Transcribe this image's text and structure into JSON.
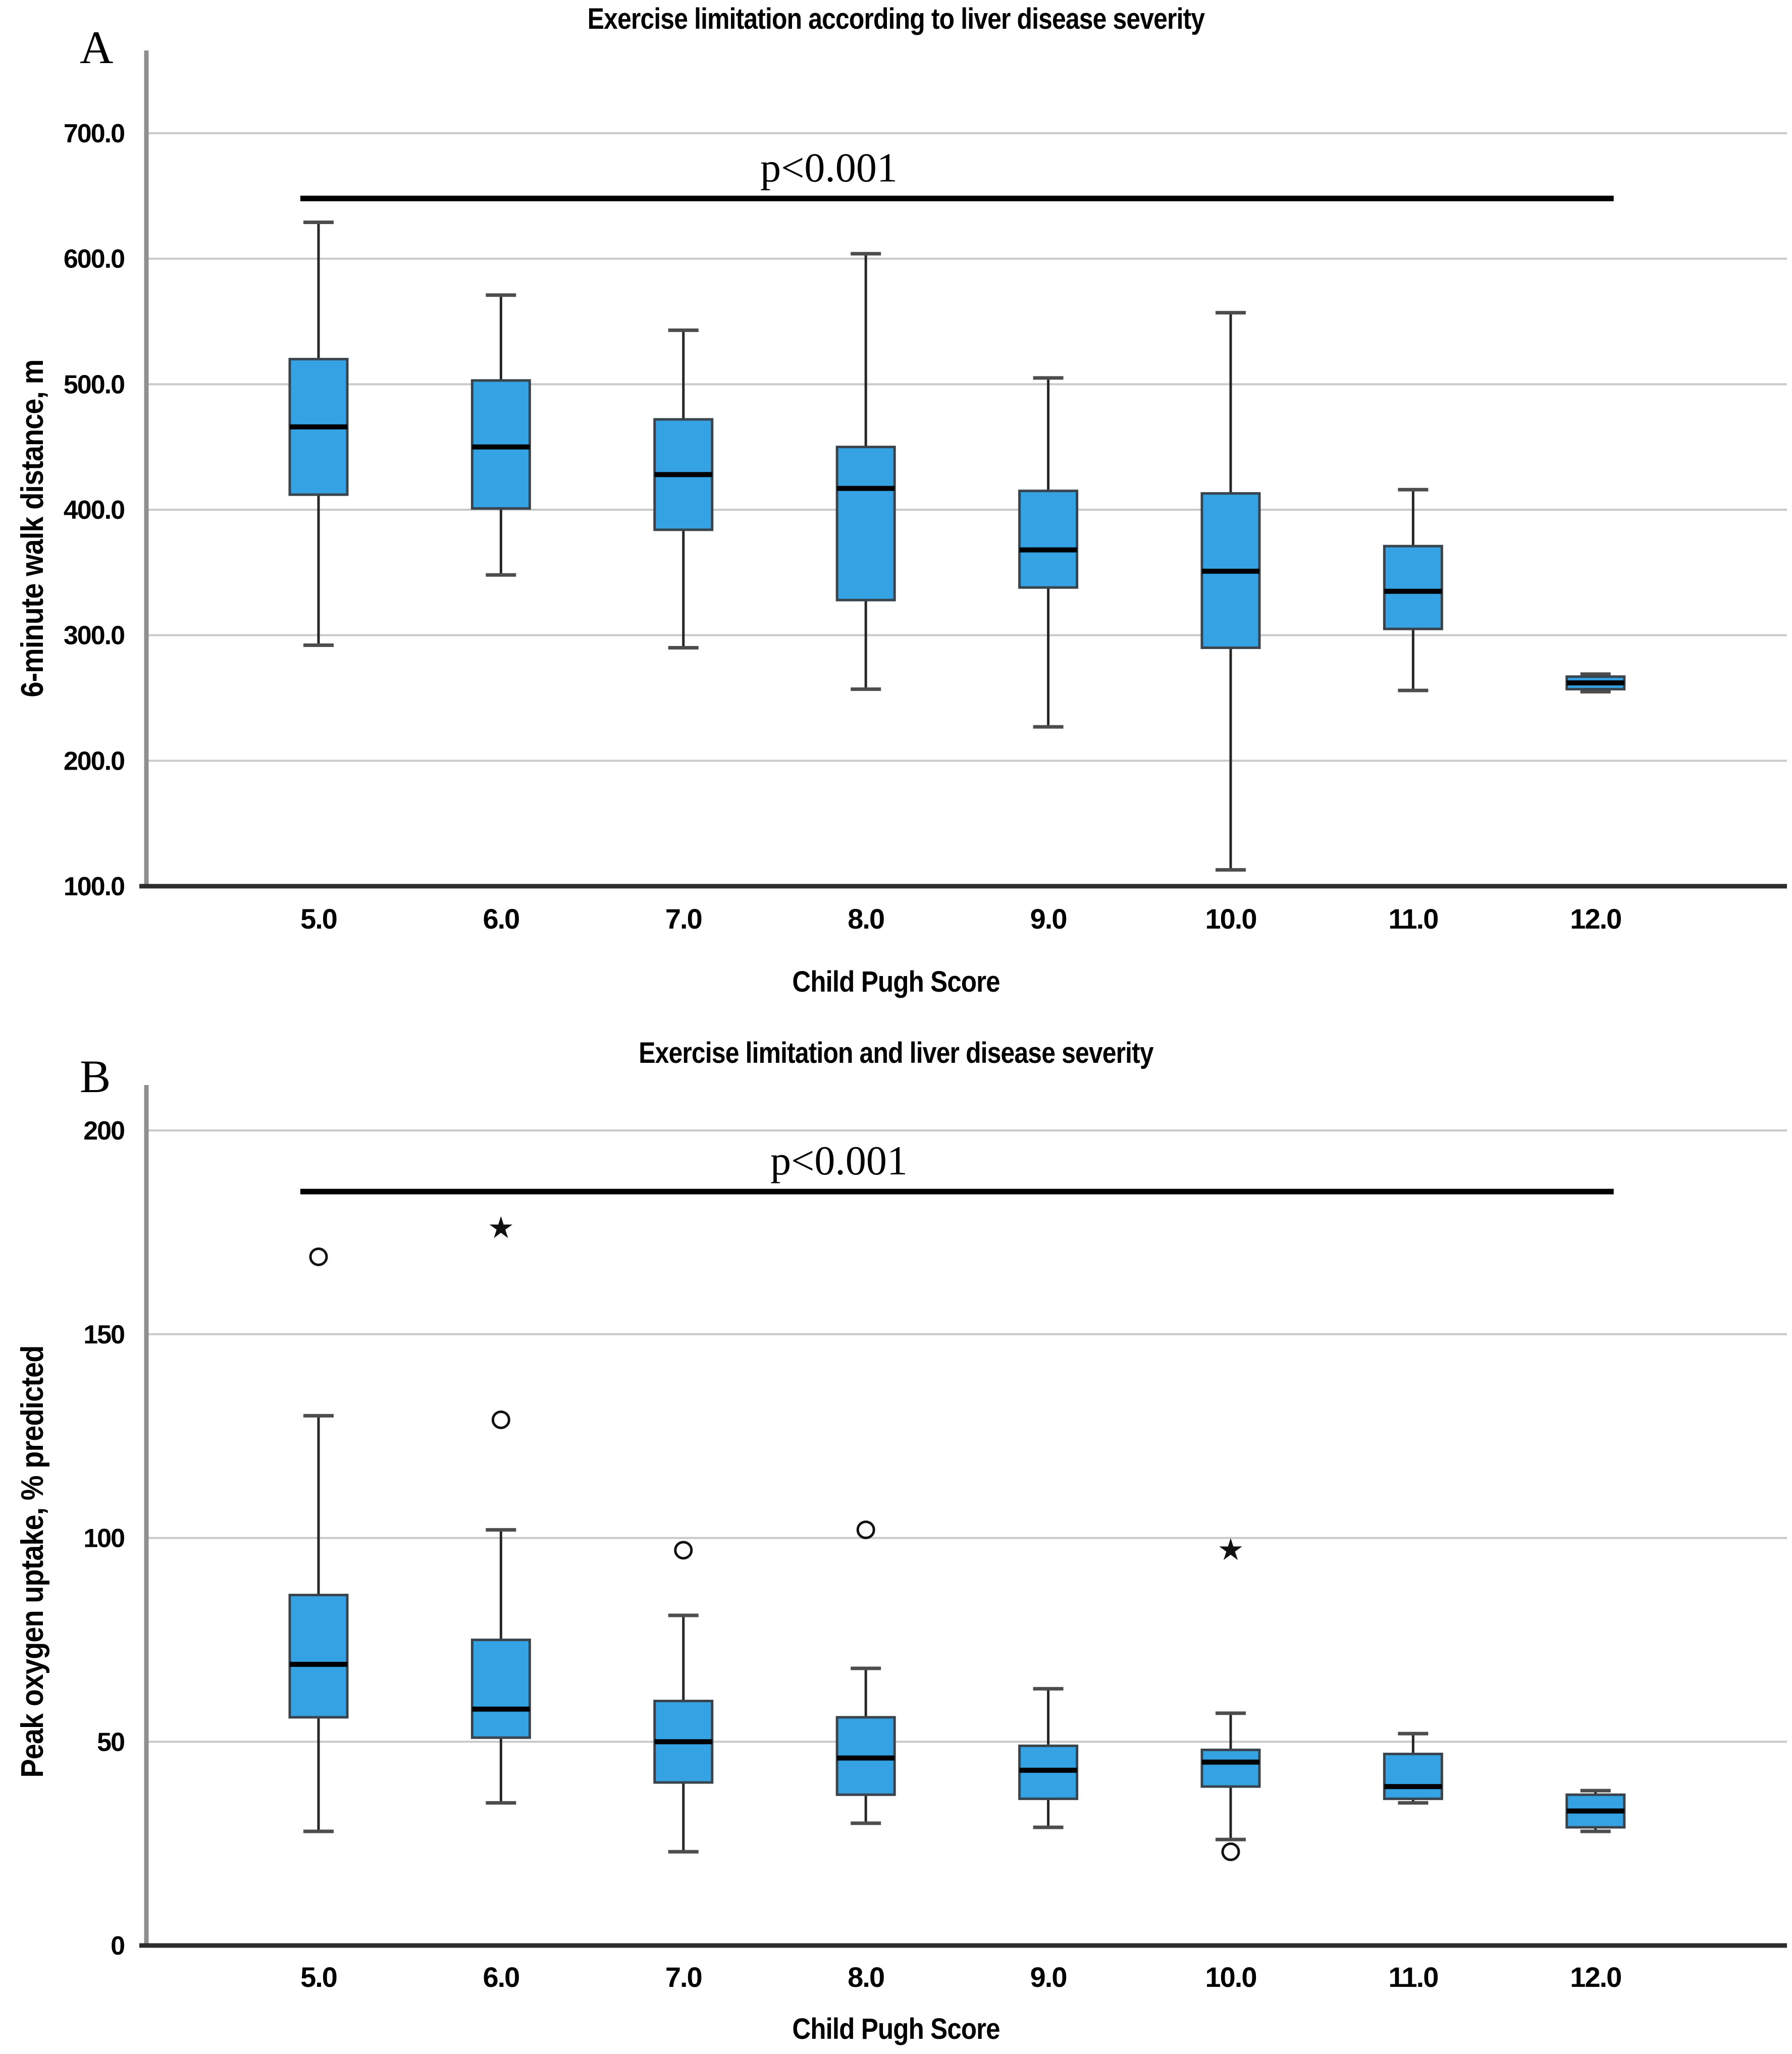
{
  "page": {
    "background": "#ffffff"
  },
  "colors": {
    "box_fill": "#35A2E3",
    "box_border": "#3a444d",
    "median": "#000000",
    "whisker": "#262626",
    "whisker_cap": "#4d4d4d",
    "grid": "#c9c9c9",
    "y_axis_line": "#8f8f8f",
    "x_axis_line": "#2d2d2d",
    "significance_line": "#000000",
    "outlier": "#111111"
  },
  "chart_data": [
    {
      "type": "box",
      "panel_letter": "A",
      "title": "Exercise limitation according to liver disease severity",
      "xlabel": "Child Pugh Score",
      "ylabel": "6-minute walk distance, m",
      "y_axis": {
        "min": 100,
        "max": 700,
        "tick_step": 100,
        "tick_values": [
          700,
          600,
          500,
          400,
          300,
          200,
          100
        ],
        "tick_labels": [
          "700.0",
          "600.0",
          "500.0",
          "400.0",
          "300.0",
          "200.0",
          "100.0"
        ]
      },
      "categories": [
        "5.0",
        "6.0",
        "7.0",
        "8.0",
        "9.0",
        "10.0",
        "11.0",
        "12.0"
      ],
      "grid": true,
      "legend": "none",
      "significance": {
        "label": "p<0.001",
        "y_value": 648
      },
      "boxes": [
        {
          "category": "5.0",
          "whisker_low": 292,
          "q1": 412,
          "median": 466,
          "q3": 520,
          "whisker_high": 629,
          "outliers": []
        },
        {
          "category": "6.0",
          "whisker_low": 348,
          "q1": 401,
          "median": 450,
          "q3": 503,
          "whisker_high": 571,
          "outliers": []
        },
        {
          "category": "7.0",
          "whisker_low": 290,
          "q1": 384,
          "median": 428,
          "q3": 472,
          "whisker_high": 543,
          "outliers": []
        },
        {
          "category": "8.0",
          "whisker_low": 257,
          "q1": 328,
          "median": 417,
          "q3": 450,
          "whisker_high": 604,
          "outliers": []
        },
        {
          "category": "9.0",
          "whisker_low": 227,
          "q1": 338,
          "median": 368,
          "q3": 415,
          "whisker_high": 505,
          "outliers": []
        },
        {
          "category": "10.0",
          "whisker_low": 113,
          "q1": 290,
          "median": 351,
          "q3": 413,
          "whisker_high": 557,
          "outliers": []
        },
        {
          "category": "11.0",
          "whisker_low": 256,
          "q1": 305,
          "median": 335,
          "q3": 371,
          "whisker_high": 416,
          "outliers": []
        },
        {
          "category": "12.0",
          "whisker_low": 255,
          "q1": 257,
          "median": 262,
          "q3": 267,
          "whisker_high": 269,
          "outliers": []
        }
      ]
    },
    {
      "type": "box",
      "panel_letter": "B",
      "title": "Exercise limitation and liver disease severity",
      "xlabel": "Child Pugh Score",
      "ylabel": "Peak oxygen uptake, % predicted",
      "y_axis": {
        "min": 0,
        "max": 200,
        "tick_step": 50,
        "tick_values": [
          200,
          150,
          100,
          50,
          0
        ],
        "tick_labels": [
          "200",
          "150",
          "100",
          "50",
          "0"
        ]
      },
      "categories": [
        "5.0",
        "6.0",
        "7.0",
        "8.0",
        "9.0",
        "10.0",
        "11.0",
        "12.0"
      ],
      "grid": true,
      "legend": "none",
      "significance": {
        "label": "p<0.001",
        "y_value": 185
      },
      "boxes": [
        {
          "category": "5.0",
          "whisker_low": 28,
          "q1": 56,
          "median": 69,
          "q3": 86,
          "whisker_high": 130,
          "outliers": [
            {
              "shape": "circle",
              "value": 169
            }
          ]
        },
        {
          "category": "6.0",
          "whisker_low": 35,
          "q1": 51,
          "median": 58,
          "q3": 75,
          "whisker_high": 102,
          "outliers": [
            {
              "shape": "circle",
              "value": 129
            },
            {
              "shape": "star",
              "value": 176
            }
          ]
        },
        {
          "category": "7.0",
          "whisker_low": 23,
          "q1": 40,
          "median": 50,
          "q3": 60,
          "whisker_high": 81,
          "outliers": [
            {
              "shape": "circle",
              "value": 97
            }
          ]
        },
        {
          "category": "8.0",
          "whisker_low": 30,
          "q1": 37,
          "median": 46,
          "q3": 56,
          "whisker_high": 68,
          "outliers": [
            {
              "shape": "circle",
              "value": 102
            }
          ]
        },
        {
          "category": "9.0",
          "whisker_low": 29,
          "q1": 36,
          "median": 43,
          "q3": 49,
          "whisker_high": 63,
          "outliers": []
        },
        {
          "category": "10.0",
          "whisker_low": 26,
          "q1": 39,
          "median": 45,
          "q3": 48,
          "whisker_high": 57,
          "outliers": [
            {
              "shape": "star",
              "value": 97
            },
            {
              "shape": "circle",
              "value": 23
            }
          ]
        },
        {
          "category": "11.0",
          "whisker_low": 35,
          "q1": 36,
          "median": 39,
          "q3": 47,
          "whisker_high": 52,
          "outliers": []
        },
        {
          "category": "12.0",
          "whisker_low": 28,
          "q1": 29,
          "median": 33,
          "q3": 37,
          "whisker_high": 38,
          "outliers": []
        }
      ]
    }
  ]
}
